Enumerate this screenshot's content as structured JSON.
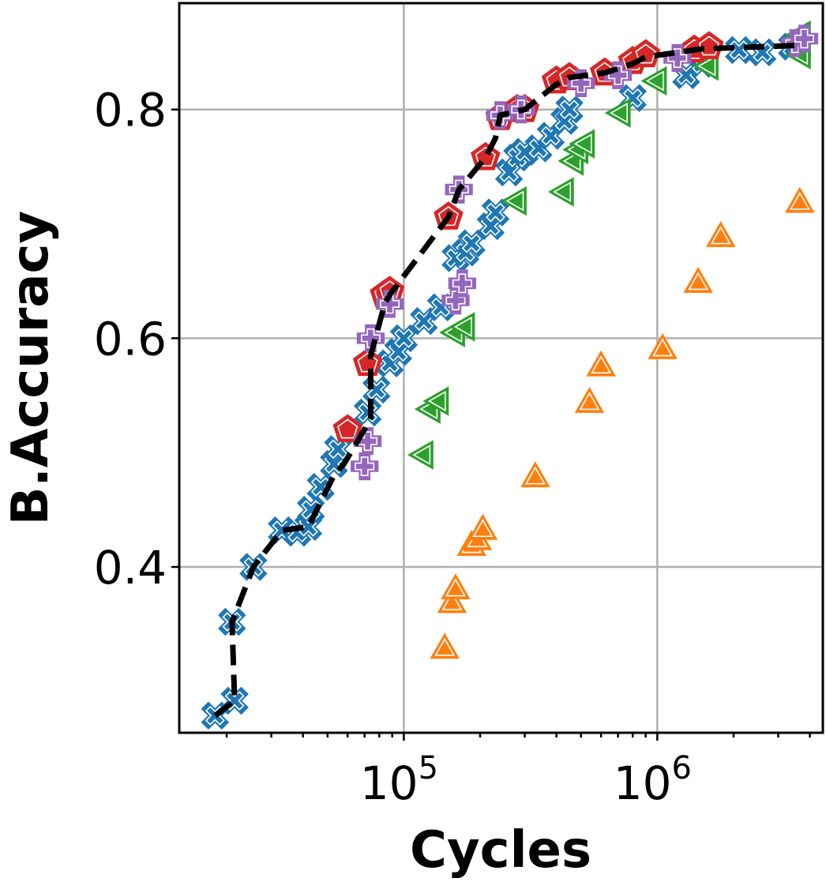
{
  "chart_data": {
    "type": "scatter",
    "title": "",
    "xlabel": "Cycles",
    "ylabel": "B.Accuracy",
    "xscale": "log",
    "xlim": [
      13000,
      4500000
    ],
    "ylim": [
      0.255,
      0.893
    ],
    "grid": true,
    "legend": "none",
    "x_major_ticks": [
      {
        "value": 100000,
        "base": "10",
        "exp": "5"
      },
      {
        "value": 1000000,
        "base": "10",
        "exp": "6"
      }
    ],
    "y_ticks": [
      {
        "value": 0.4,
        "label": "0.4"
      },
      {
        "value": 0.6,
        "label": "0.6"
      },
      {
        "value": 0.8,
        "label": "0.8"
      }
    ],
    "colors": {
      "blue": "#1f77b4",
      "orange": "#ff7f0e",
      "green": "#2ca02c",
      "red": "#d62728",
      "purple": "#9467bd",
      "frontier": "#000000"
    },
    "series": [
      {
        "marker": "X",
        "color": "#1f77b4",
        "points": [
          [
            18000,
            0.27
          ],
          [
            21500,
            0.283
          ],
          [
            21000,
            0.352
          ],
          [
            25500,
            0.4
          ],
          [
            33000,
            0.432
          ],
          [
            38000,
            0.43
          ],
          [
            42000,
            0.435
          ],
          [
            43000,
            0.45
          ],
          [
            47000,
            0.47
          ],
          [
            53000,
            0.49
          ],
          [
            55000,
            0.503
          ],
          [
            72000,
            0.535
          ],
          [
            78000,
            0.555
          ],
          [
            88000,
            0.578
          ],
          [
            95000,
            0.588
          ],
          [
            100000,
            0.6
          ],
          [
            120000,
            0.615
          ],
          [
            140000,
            0.627
          ],
          [
            160000,
            0.67
          ],
          [
            175000,
            0.675
          ],
          [
            185000,
            0.683
          ],
          [
            220000,
            0.698
          ],
          [
            230000,
            0.71
          ],
          [
            260000,
            0.745
          ],
          [
            280000,
            0.758
          ],
          [
            300000,
            0.763
          ],
          [
            340000,
            0.766
          ],
          [
            380000,
            0.777
          ],
          [
            430000,
            0.79
          ],
          [
            450000,
            0.8
          ],
          [
            800000,
            0.81
          ],
          [
            1300000,
            0.83
          ],
          [
            1500000,
            0.84
          ],
          [
            2100000,
            0.852
          ],
          [
            2600000,
            0.85
          ],
          [
            3400000,
            0.855
          ]
        ]
      },
      {
        "marker": "^",
        "color": "#ff7f0e",
        "points": [
          [
            145000,
            0.328
          ],
          [
            155000,
            0.368
          ],
          [
            160000,
            0.38
          ],
          [
            185000,
            0.418
          ],
          [
            195000,
            0.423
          ],
          [
            205000,
            0.432
          ],
          [
            330000,
            0.478
          ],
          [
            540000,
            0.543
          ],
          [
            600000,
            0.575
          ],
          [
            1050000,
            0.59
          ],
          [
            1450000,
            0.648
          ],
          [
            1780000,
            0.688
          ],
          [
            3650000,
            0.718
          ]
        ]
      },
      {
        "marker": "<",
        "color": "#2ca02c",
        "points": [
          [
            120000,
            0.498
          ],
          [
            128000,
            0.538
          ],
          [
            138000,
            0.545
          ],
          [
            160000,
            0.605
          ],
          [
            175000,
            0.61
          ],
          [
            280000,
            0.72
          ],
          [
            430000,
            0.728
          ],
          [
            470000,
            0.755
          ],
          [
            490000,
            0.765
          ],
          [
            520000,
            0.77
          ],
          [
            720000,
            0.797
          ],
          [
            1000000,
            0.825
          ],
          [
            1600000,
            0.838
          ],
          [
            3700000,
            0.848
          ],
          [
            3700000,
            0.865
          ]
        ]
      },
      {
        "marker": "p",
        "color": "#d62728",
        "points": [
          [
            60000,
            0.52
          ],
          [
            72000,
            0.578
          ],
          [
            84000,
            0.638
          ],
          [
            88000,
            0.641
          ],
          [
            150000,
            0.706
          ],
          [
            210000,
            0.758
          ],
          [
            240000,
            0.793
          ],
          [
            280000,
            0.8
          ],
          [
            300000,
            0.8
          ],
          [
            400000,
            0.825
          ],
          [
            450000,
            0.828
          ],
          [
            620000,
            0.832
          ],
          [
            800000,
            0.842
          ],
          [
            900000,
            0.848
          ],
          [
            1400000,
            0.852
          ],
          [
            1600000,
            0.855
          ]
        ]
      },
      {
        "marker": "P",
        "color": "#9467bd",
        "points": [
          [
            70000,
            0.488
          ],
          [
            72000,
            0.51
          ],
          [
            74000,
            0.6
          ],
          [
            88000,
            0.63
          ],
          [
            160000,
            0.633
          ],
          [
            170000,
            0.648
          ],
          [
            165000,
            0.73
          ],
          [
            240000,
            0.795
          ],
          [
            290000,
            0.8
          ],
          [
            500000,
            0.823
          ],
          [
            700000,
            0.83
          ],
          [
            1200000,
            0.845
          ],
          [
            3500000,
            0.858
          ],
          [
            3800000,
            0.862
          ]
        ]
      }
    ],
    "frontier": {
      "style": "dashed",
      "color": "#000000",
      "points": [
        [
          18000,
          0.27
        ],
        [
          21500,
          0.283
        ],
        [
          21000,
          0.352
        ],
        [
          25500,
          0.4
        ],
        [
          33000,
          0.432
        ],
        [
          42000,
          0.435
        ],
        [
          53000,
          0.48
        ],
        [
          58000,
          0.49
        ],
        [
          72000,
          0.525
        ],
        [
          74000,
          0.53
        ],
        [
          74000,
          0.585
        ],
        [
          84000,
          0.63
        ],
        [
          88000,
          0.638
        ],
        [
          150000,
          0.706
        ],
        [
          165000,
          0.73
        ],
        [
          210000,
          0.758
        ],
        [
          230000,
          0.775
        ],
        [
          240000,
          0.795
        ],
        [
          300000,
          0.8
        ],
        [
          400000,
          0.822
        ],
        [
          450000,
          0.828
        ],
        [
          620000,
          0.832
        ],
        [
          800000,
          0.84
        ],
        [
          900000,
          0.846
        ],
        [
          1500000,
          0.853
        ],
        [
          3500000,
          0.856
        ]
      ]
    }
  }
}
